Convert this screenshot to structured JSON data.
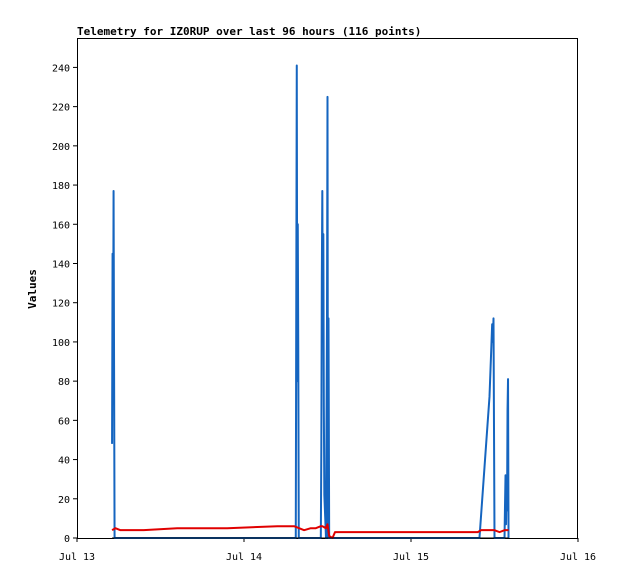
{
  "chart_data": {
    "type": "line",
    "title": "Telemetry for IZ0RUP over last 96 hours (116 points)",
    "xlabel": "",
    "ylabel": "Values",
    "ylim": [
      0,
      255
    ],
    "xlim": [
      0,
      3
    ],
    "x_ticks": [
      {
        "label": "Jul 13",
        "value": 0
      },
      {
        "label": "Jul 14",
        "value": 1
      },
      {
        "label": "Jul 15",
        "value": 2
      },
      {
        "label": "Jul 16",
        "value": 3
      }
    ],
    "y_ticks": [
      0,
      20,
      40,
      60,
      80,
      100,
      120,
      140,
      160,
      180,
      200,
      220,
      240
    ],
    "grid": false,
    "legend": "none",
    "series": [
      {
        "color": "#1565c0",
        "points": [
          [
            0.21,
            48
          ],
          [
            0.213,
            145
          ],
          [
            0.216,
            80
          ],
          [
            0.219,
            177
          ],
          [
            0.222,
            88
          ],
          [
            0.225,
            0
          ],
          [
            1.31,
            0
          ],
          [
            1.313,
            120
          ],
          [
            1.316,
            241
          ],
          [
            1.319,
            80
          ],
          [
            1.322,
            160
          ],
          [
            1.325,
            96
          ],
          [
            1.328,
            0
          ],
          [
            1.46,
            0
          ],
          [
            1.463,
            45
          ],
          [
            1.466,
            132
          ],
          [
            1.469,
            177
          ],
          [
            1.472,
            110
          ],
          [
            1.475,
            155
          ],
          [
            1.478,
            67
          ],
          [
            1.481,
            22
          ],
          [
            1.491,
            0
          ],
          [
            1.497,
            112
          ],
          [
            1.5,
            225
          ],
          [
            1.503,
            0
          ],
          [
            1.506,
            112
          ],
          [
            1.51,
            0
          ],
          [
            2.41,
            0
          ],
          [
            2.44,
            36
          ],
          [
            2.47,
            72
          ],
          [
            2.48,
            95
          ],
          [
            2.486,
            109
          ],
          [
            2.49,
            100
          ],
          [
            2.494,
            112
          ],
          [
            2.497,
            56
          ],
          [
            2.5,
            0
          ],
          [
            2.56,
            0
          ],
          [
            2.563,
            17
          ],
          [
            2.566,
            32
          ],
          [
            2.569,
            7
          ],
          [
            2.572,
            25
          ],
          [
            2.575,
            14
          ],
          [
            2.578,
            65
          ],
          [
            2.581,
            81
          ],
          [
            2.584,
            0
          ]
        ]
      },
      {
        "color": "#e00000",
        "points": [
          [
            0.21,
            4
          ],
          [
            0.23,
            5
          ],
          [
            0.26,
            4
          ],
          [
            0.4,
            4
          ],
          [
            0.6,
            5
          ],
          [
            0.9,
            5
          ],
          [
            1.2,
            6
          ],
          [
            1.3,
            6
          ],
          [
            1.33,
            5
          ],
          [
            1.36,
            4
          ],
          [
            1.4,
            5
          ],
          [
            1.43,
            5
          ],
          [
            1.46,
            6
          ],
          [
            1.47,
            6
          ],
          [
            1.49,
            5
          ],
          [
            1.5,
            7
          ],
          [
            1.51,
            1
          ],
          [
            1.53,
            0
          ],
          [
            1.545,
            3
          ],
          [
            1.6,
            3
          ],
          [
            2.0,
            3
          ],
          [
            2.4,
            3
          ],
          [
            2.42,
            4
          ],
          [
            2.5,
            4
          ],
          [
            2.53,
            3
          ],
          [
            2.56,
            4
          ],
          [
            2.584,
            4
          ]
        ]
      },
      {
        "color": "#000000",
        "points": [
          [
            0.21,
            0
          ],
          [
            2.584,
            0
          ]
        ]
      }
    ]
  }
}
